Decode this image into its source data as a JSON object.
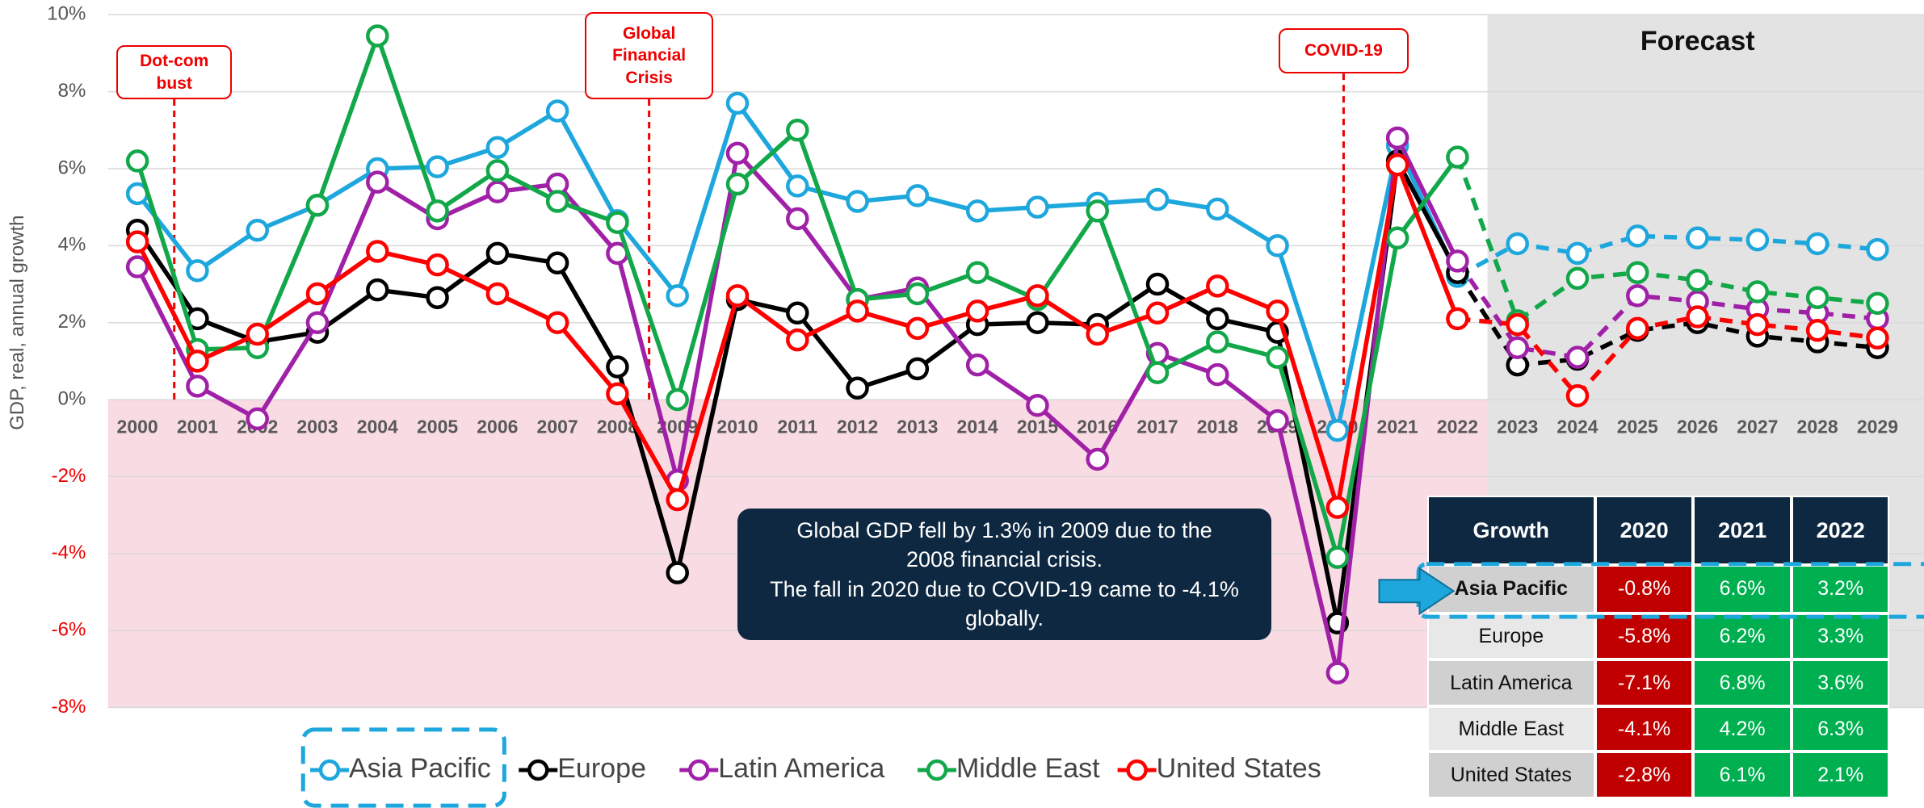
{
  "chart_data": {
    "type": "line",
    "y_axis_label": "GDP, real, annual growth",
    "categories": [
      "2000",
      "2001",
      "2002",
      "2003",
      "2004",
      "2005",
      "2006",
      "2007",
      "2008",
      "2009",
      "2010",
      "2011",
      "2012",
      "2013",
      "2014",
      "2015",
      "2016",
      "2017",
      "2018",
      "2019",
      "2020",
      "2021",
      "2022",
      "2023",
      "2024",
      "2025",
      "2026",
      "2027",
      "2028",
      "2029"
    ],
    "series": [
      {
        "name": "Asia Pacific",
        "color": "#1ea7dd",
        "values": [
          5.35,
          3.35,
          4.4,
          5.05,
          6.0,
          6.05,
          6.55,
          7.5,
          4.65,
          2.7,
          7.7,
          5.55,
          5.15,
          5.3,
          4.9,
          5.0,
          5.1,
          5.2,
          4.95,
          4.0,
          -0.8,
          6.6,
          3.2,
          4.05,
          3.8,
          4.25,
          4.2,
          4.15,
          4.05,
          3.9
        ]
      },
      {
        "name": "Europe",
        "color": "#000000",
        "values": [
          4.4,
          2.1,
          1.5,
          1.75,
          2.85,
          2.65,
          3.8,
          3.55,
          0.85,
          -4.5,
          2.6,
          2.25,
          0.3,
          0.8,
          1.95,
          2.0,
          1.95,
          3.0,
          2.1,
          1.75,
          -5.8,
          6.2,
          3.3,
          0.9,
          1.05,
          1.8,
          2.0,
          1.65,
          1.5,
          1.35
        ]
      },
      {
        "name": "Latin America",
        "color": "#a020a8",
        "values": [
          3.45,
          0.35,
          -0.5,
          2.0,
          5.65,
          4.7,
          5.4,
          5.6,
          3.8,
          -2.1,
          6.4,
          4.7,
          2.6,
          2.9,
          0.9,
          -0.15,
          -1.55,
          1.2,
          0.65,
          -0.55,
          -7.1,
          6.8,
          3.6,
          1.35,
          1.1,
          2.7,
          2.55,
          2.35,
          2.25,
          2.1
        ]
      },
      {
        "name": "Middle East",
        "color": "#12a84a",
        "values": [
          6.2,
          1.3,
          1.35,
          5.05,
          9.45,
          4.9,
          5.95,
          5.15,
          4.6,
          0.0,
          5.6,
          7.0,
          2.6,
          2.75,
          3.3,
          2.6,
          4.9,
          0.7,
          1.5,
          1.1,
          -4.1,
          4.2,
          6.3,
          2.05,
          3.15,
          3.3,
          3.1,
          2.8,
          2.65,
          2.5
        ]
      },
      {
        "name": "United States",
        "color": "#ff0000",
        "values": [
          4.1,
          1.0,
          1.7,
          2.75,
          3.85,
          3.5,
          2.75,
          2.0,
          0.15,
          -2.6,
          2.7,
          1.55,
          2.3,
          1.85,
          2.3,
          2.7,
          1.7,
          2.25,
          2.95,
          2.3,
          -2.8,
          6.1,
          2.1,
          1.95,
          0.1,
          1.85,
          2.15,
          1.95,
          1.8,
          1.6
        ]
      }
    ],
    "ylim": [
      -8,
      10
    ],
    "yticks": [
      {
        "value": 10,
        "label": "10%"
      },
      {
        "value": 8,
        "label": "8%"
      },
      {
        "value": 6,
        "label": "6%"
      },
      {
        "value": 4,
        "label": "4%"
      },
      {
        "value": 2,
        "label": "2%"
      },
      {
        "value": 0,
        "label": "0%"
      },
      {
        "value": -2,
        "label": "-2%"
      },
      {
        "value": -4,
        "label": "-4%"
      },
      {
        "value": -6,
        "label": "-6%"
      },
      {
        "value": -8,
        "label": "-8%"
      }
    ],
    "grid": true,
    "forecast": {
      "label": "Forecast",
      "from": "2023"
    },
    "annotations": [
      {
        "label": "Dot-com bust"
      },
      {
        "label": "Global Financial Crisis"
      },
      {
        "label": "COVID-19"
      }
    ],
    "note": [
      "Global GDP fell by 1.3% in 2009 due to the 2008 financial crisis.",
      "The fall in 2020 due to COVID-19 came to -4.1% globally."
    ],
    "legend": "bottom"
  },
  "table": {
    "header": [
      "Growth",
      "2020",
      "2021",
      "2022"
    ],
    "rows": [
      [
        "Asia Pacific",
        "-0.8%",
        "6.6%",
        "3.2%"
      ],
      [
        "Europe",
        "-5.8%",
        "6.2%",
        "3.3%"
      ],
      [
        "Latin America",
        "-7.1%",
        "6.8%",
        "3.6%"
      ],
      [
        "Middle East",
        "-4.1%",
        "4.2%",
        "6.3%"
      ],
      [
        "United States",
        "-2.8%",
        "6.1%",
        "2.1%"
      ]
    ]
  }
}
